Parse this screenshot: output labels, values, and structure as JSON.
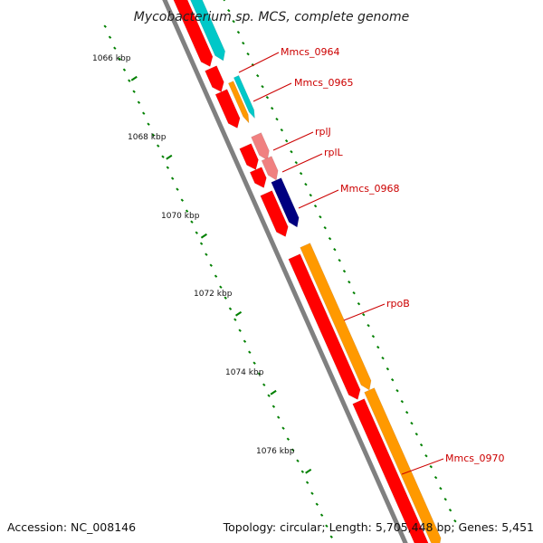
{
  "title": "Mycobacterium sp. MCS, complete genome",
  "kbp_labels": [
    "1066 kbp",
    "1068 kbp",
    "1070 kbp",
    "1072 kbp",
    "1074 kbp",
    "1076 kbp"
  ],
  "genes": [
    {
      "id": "g0",
      "label": "",
      "color": "#ff0000",
      "strand": "forward",
      "ring": 1
    },
    {
      "id": "g0b",
      "label": "",
      "color": "#00c8c8",
      "strand": "forward",
      "ring": 2
    },
    {
      "id": "g1",
      "label": "Mmcs_0964",
      "color": "#ff0000",
      "strand": "forward",
      "ring": 1
    },
    {
      "id": "g2",
      "label": "Mmcs_0965",
      "color": "#ff0000",
      "strand": "forward",
      "ring": 1
    },
    {
      "id": "g2b",
      "label": "",
      "color": "#ff9900",
      "strand": "forward",
      "ring": 2
    },
    {
      "id": "g2c",
      "label": "",
      "color": "#00c8c8",
      "strand": "forward",
      "ring": 2
    },
    {
      "id": "g3",
      "label": "rplJ",
      "color": "#ff0000",
      "strand": "forward",
      "ring": 1
    },
    {
      "id": "g3b",
      "label": "",
      "color": "#f08080",
      "strand": "forward",
      "ring": 2
    },
    {
      "id": "g4",
      "label": "rplL",
      "color": "#ff0000",
      "strand": "forward",
      "ring": 1
    },
    {
      "id": "g4b",
      "label": "",
      "color": "#f08080",
      "strand": "forward",
      "ring": 2
    },
    {
      "id": "g5",
      "label": "Mmcs_0968",
      "color": "#ff0000",
      "strand": "forward",
      "ring": 1
    },
    {
      "id": "g5b",
      "label": "",
      "color": "#000080",
      "strand": "forward",
      "ring": 2
    },
    {
      "id": "g6",
      "label": "rpoB",
      "color": "#ff0000",
      "strand": "forward",
      "ring": 1
    },
    {
      "id": "g6b",
      "label": "",
      "color": "#ff9900",
      "strand": "forward",
      "ring": 2
    },
    {
      "id": "g7",
      "label": "Mmcs_0970",
      "color": "#ff0000",
      "strand": "forward",
      "ring": 1
    },
    {
      "id": "g7b",
      "label": "",
      "color": "#ff9900",
      "strand": "forward",
      "ring": 2
    }
  ],
  "footer": {
    "accession": "Accession: NC_008146",
    "summary": "Topology: circular; Length: 5,705,448 bp; Genes: 5,451"
  },
  "colors": {
    "backbone": "#808080",
    "tick": "#008000",
    "label_text": "#cc0000",
    "leader_line": "#cc0000"
  }
}
